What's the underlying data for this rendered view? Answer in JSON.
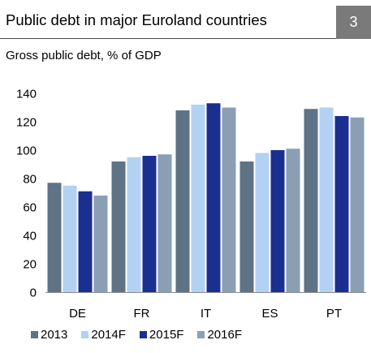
{
  "header": {
    "title": "Public debt in major Euroland countries",
    "figure_number": "3"
  },
  "subtitle": "Gross public debt, % of GDP",
  "chart_data": {
    "type": "bar",
    "title": "Public debt in major Euroland countries",
    "subtitle": "Gross public debt, % of GDP",
    "xlabel": "",
    "ylabel": "",
    "categories": [
      "DE",
      "FR",
      "IT",
      "ES",
      "PT"
    ],
    "ylim": [
      0,
      140
    ],
    "yticks": [
      "0",
      "20",
      "40",
      "60",
      "80",
      "100",
      "120",
      "140"
    ],
    "grid": false,
    "legend_position": "bottom",
    "series": [
      {
        "name": "2013",
        "color": "#5f7386",
        "values": [
          77,
          92,
          128,
          92,
          129
        ]
      },
      {
        "name": "2014F",
        "color": "#b3d1f2",
        "values": [
          75,
          95,
          132,
          98,
          130
        ]
      },
      {
        "name": "2015F",
        "color": "#1b2f91",
        "values": [
          71,
          96,
          133,
          100,
          124
        ]
      },
      {
        "name": "2016F",
        "color": "#8a9fb3",
        "values": [
          68,
          97,
          130,
          101,
          123
        ]
      }
    ]
  }
}
